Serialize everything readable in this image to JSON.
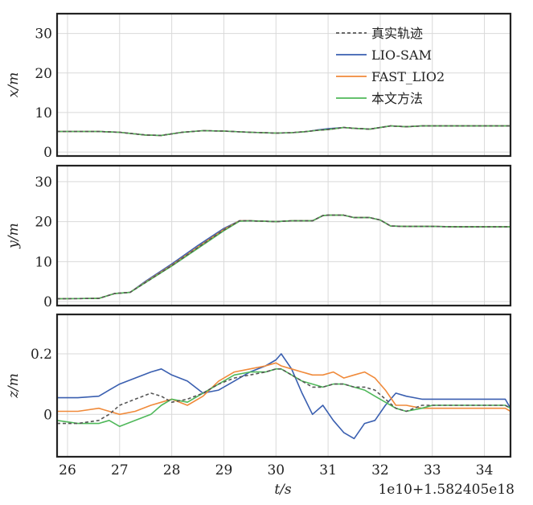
{
  "figure": {
    "xlabel": "t/s",
    "offset_text": "1e10+1.582405e18",
    "xticks": [
      "26",
      "27",
      "28",
      "29",
      "30",
      "31",
      "32",
      "33",
      "34"
    ],
    "xlim": [
      25.8,
      34.5
    ]
  },
  "legend": {
    "placement": "top-right of first panel",
    "entries": [
      {
        "name": "真实轨迹",
        "color": "#555555",
        "dash": true
      },
      {
        "name": "LIO-SAM",
        "color": "#3a5fb0",
        "dash": false
      },
      {
        "name": "FAST_LIO2",
        "color": "#f08a3a",
        "dash": false
      },
      {
        "name": "本文方法",
        "color": "#4fb85a",
        "dash": false
      }
    ]
  },
  "chart_data": [
    {
      "type": "line",
      "ylabel": "x/m",
      "ylim": [
        -1,
        35
      ],
      "yticks": [
        {
          "v": 0,
          "label": "0"
        },
        {
          "v": 10,
          "label": "10"
        },
        {
          "v": 20,
          "label": "20"
        },
        {
          "v": 30,
          "label": "30"
        }
      ],
      "x": [
        25.8,
        26.6,
        27.0,
        27.5,
        27.8,
        28.2,
        28.6,
        29.0,
        29.5,
        30.0,
        30.3,
        30.6,
        30.8,
        31.0,
        31.3,
        31.5,
        31.8,
        32.0,
        32.2,
        32.5,
        32.8,
        33.0,
        33.5,
        34.0,
        34.5
      ],
      "series": [
        {
          "name": "真实轨迹",
          "values": [
            5.2,
            5.2,
            5.0,
            4.3,
            4.2,
            5.0,
            5.4,
            5.3,
            5.0,
            4.8,
            4.9,
            5.2,
            5.5,
            5.7,
            6.2,
            6.0,
            5.8,
            6.2,
            6.6,
            6.4,
            6.6,
            6.6,
            6.6,
            6.6,
            6.6
          ]
        },
        {
          "name": "LIO-SAM",
          "values": [
            5.2,
            5.2,
            5.0,
            4.3,
            4.2,
            5.0,
            5.4,
            5.3,
            5.0,
            4.8,
            4.9,
            5.2,
            5.6,
            5.9,
            6.2,
            6.0,
            5.8,
            6.2,
            6.6,
            6.4,
            6.6,
            6.6,
            6.6,
            6.6,
            6.6
          ]
        },
        {
          "name": "FAST_LIO2",
          "values": [
            5.2,
            5.2,
            5.0,
            4.3,
            4.2,
            5.0,
            5.4,
            5.3,
            5.0,
            4.8,
            4.9,
            5.2,
            5.5,
            5.7,
            6.2,
            6.0,
            5.8,
            6.2,
            6.6,
            6.4,
            6.6,
            6.6,
            6.6,
            6.6,
            6.6
          ]
        },
        {
          "name": "本文方法",
          "values": [
            5.2,
            5.2,
            5.0,
            4.3,
            4.2,
            5.0,
            5.4,
            5.3,
            5.0,
            4.8,
            4.9,
            5.2,
            5.5,
            5.7,
            6.2,
            6.0,
            5.8,
            6.2,
            6.6,
            6.4,
            6.6,
            6.6,
            6.6,
            6.6,
            6.6
          ]
        }
      ]
    },
    {
      "type": "line",
      "ylabel": "y/m",
      "ylim": [
        -1,
        34
      ],
      "yticks": [
        {
          "v": 0,
          "label": "0"
        },
        {
          "v": 10,
          "label": "10"
        },
        {
          "v": 20,
          "label": "20"
        },
        {
          "v": 30,
          "label": "30"
        }
      ],
      "x": [
        25.8,
        26.6,
        26.9,
        27.2,
        27.5,
        28.0,
        28.5,
        29.0,
        29.3,
        29.5,
        30.0,
        30.3,
        30.7,
        30.9,
        31.0,
        31.3,
        31.5,
        31.8,
        32.0,
        32.2,
        32.5,
        33.0,
        33.5,
        34.0,
        34.5
      ],
      "series": [
        {
          "name": "真实轨迹",
          "values": [
            0.7,
            0.8,
            2.0,
            2.3,
            4.8,
            9.0,
            13.5,
            17.9,
            20.2,
            20.2,
            20.0,
            20.2,
            20.2,
            21.5,
            21.6,
            21.6,
            21.0,
            21.0,
            20.4,
            18.9,
            18.8,
            18.8,
            18.7,
            18.7,
            18.7
          ]
        },
        {
          "name": "LIO-SAM",
          "values": [
            0.7,
            0.8,
            2.0,
            2.3,
            5.1,
            9.4,
            14.0,
            18.3,
            20.2,
            20.2,
            20.0,
            20.2,
            20.2,
            21.5,
            21.6,
            21.6,
            21.0,
            21.0,
            20.4,
            18.9,
            18.8,
            18.8,
            18.7,
            18.7,
            18.7
          ]
        },
        {
          "name": "FAST_LIO2",
          "values": [
            0.7,
            0.8,
            2.0,
            2.3,
            4.9,
            9.1,
            13.6,
            18.0,
            20.2,
            20.2,
            20.0,
            20.2,
            20.2,
            21.5,
            21.6,
            21.6,
            21.0,
            21.0,
            20.4,
            18.9,
            18.8,
            18.8,
            18.7,
            18.7,
            18.7
          ]
        },
        {
          "name": "本文方法",
          "values": [
            0.7,
            0.8,
            2.0,
            2.3,
            4.8,
            8.9,
            13.3,
            17.7,
            20.1,
            20.2,
            20.0,
            20.2,
            20.2,
            21.5,
            21.6,
            21.6,
            21.0,
            21.0,
            20.4,
            18.9,
            18.8,
            18.8,
            18.7,
            18.7,
            18.7
          ]
        }
      ]
    },
    {
      "type": "line",
      "ylabel": "z/m",
      "ylim": [
        -0.14,
        0.33
      ],
      "yticks": [
        {
          "v": 0,
          "label": "0"
        },
        {
          "v": 0.2,
          "label": "0.2"
        }
      ],
      "x": [
        25.8,
        26.2,
        26.6,
        26.8,
        27.0,
        27.3,
        27.6,
        27.8,
        28.0,
        28.3,
        28.6,
        28.9,
        29.2,
        29.5,
        29.8,
        30.0,
        30.1,
        30.3,
        30.5,
        30.7,
        30.9,
        31.1,
        31.3,
        31.5,
        31.7,
        31.9,
        32.1,
        32.3,
        32.5,
        32.8,
        33.0,
        33.5,
        34.0,
        34.4,
        34.5
      ],
      "series": [
        {
          "name": "真实轨迹",
          "values": [
            -0.03,
            -0.03,
            -0.02,
            0.0,
            0.03,
            0.05,
            0.07,
            0.06,
            0.04,
            0.05,
            0.07,
            0.1,
            0.12,
            0.13,
            0.14,
            0.15,
            0.15,
            0.13,
            0.11,
            0.09,
            0.09,
            0.1,
            0.1,
            0.09,
            0.09,
            0.08,
            0.05,
            0.02,
            0.01,
            0.03,
            0.03,
            0.03,
            0.03,
            0.03,
            0.02
          ]
        },
        {
          "name": "LIO-SAM",
          "values": [
            0.055,
            0.055,
            0.06,
            0.08,
            0.1,
            0.12,
            0.14,
            0.15,
            0.13,
            0.11,
            0.07,
            0.08,
            0.11,
            0.14,
            0.16,
            0.18,
            0.2,
            0.15,
            0.07,
            0.0,
            0.03,
            -0.02,
            -0.06,
            -0.08,
            -0.03,
            -0.02,
            0.03,
            0.07,
            0.06,
            0.05,
            0.05,
            0.05,
            0.05,
            0.05,
            0.02
          ]
        },
        {
          "name": "FAST_LIO2",
          "values": [
            0.01,
            0.01,
            0.02,
            0.01,
            0.0,
            0.01,
            0.03,
            0.04,
            0.05,
            0.03,
            0.06,
            0.11,
            0.14,
            0.15,
            0.16,
            0.17,
            0.16,
            0.15,
            0.14,
            0.13,
            0.13,
            0.14,
            0.12,
            0.13,
            0.14,
            0.12,
            0.08,
            0.03,
            0.03,
            0.02,
            0.02,
            0.02,
            0.02,
            0.02,
            0.01
          ]
        },
        {
          "name": "本文方法",
          "values": [
            -0.02,
            -0.03,
            -0.03,
            -0.02,
            -0.04,
            -0.02,
            0.0,
            0.03,
            0.05,
            0.04,
            0.07,
            0.1,
            0.13,
            0.14,
            0.14,
            0.15,
            0.15,
            0.13,
            0.11,
            0.1,
            0.09,
            0.1,
            0.1,
            0.09,
            0.08,
            0.06,
            0.04,
            0.02,
            0.01,
            0.02,
            0.03,
            0.03,
            0.03,
            0.03,
            0.02
          ]
        }
      ]
    }
  ]
}
